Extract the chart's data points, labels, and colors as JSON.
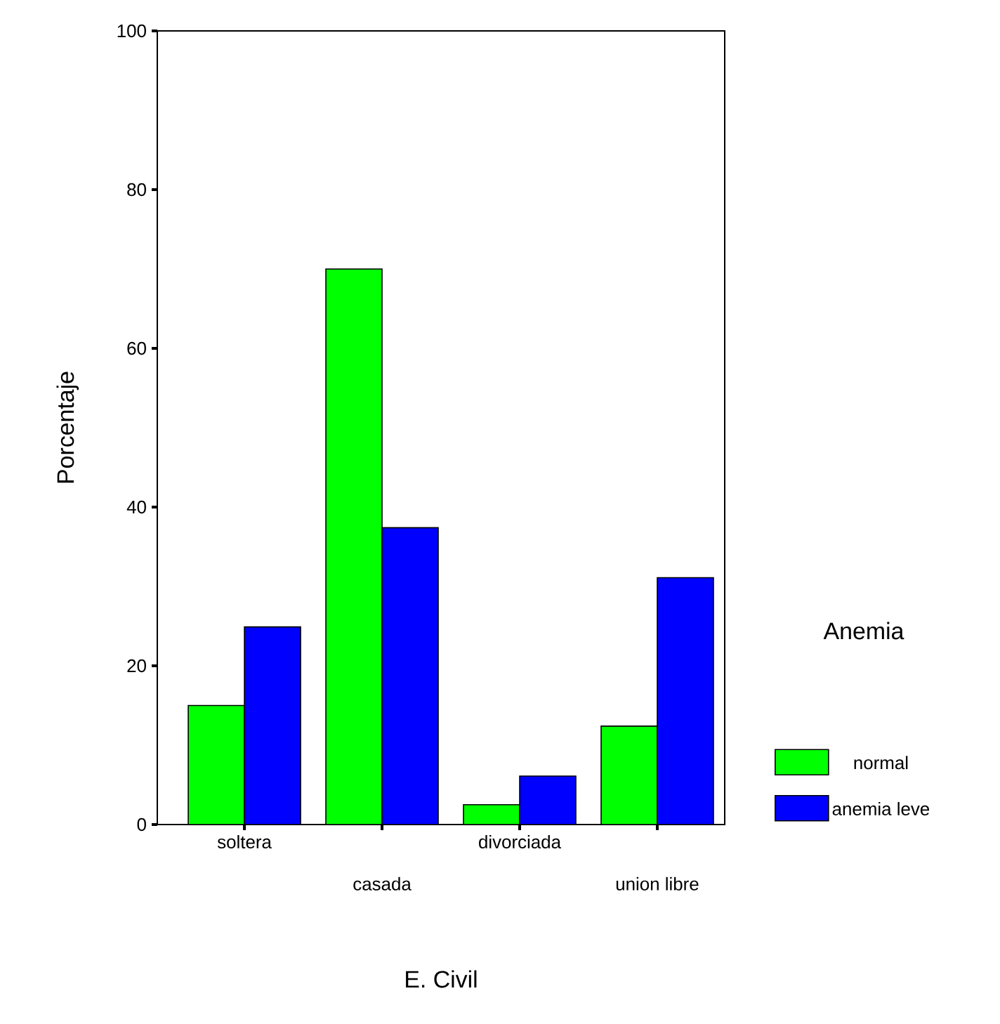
{
  "chart_data": {
    "type": "bar",
    "xlabel": "E. Civil",
    "ylabel": "Porcentaje",
    "legend_title": "Anemia",
    "categories": [
      "soltera",
      "casada",
      "divorciada",
      "union libre"
    ],
    "series": [
      {
        "name": "normal",
        "color": "#00ff00",
        "values": [
          15.0,
          70.0,
          2.5,
          12.4
        ]
      },
      {
        "name": "anemia leve",
        "color": "#0000ff",
        "values": [
          24.9,
          37.4,
          6.1,
          31.1
        ]
      }
    ],
    "ylim": [
      0,
      100
    ],
    "yticks": [
      0,
      20,
      40,
      60,
      80,
      100
    ],
    "grid": false,
    "legend": "right"
  }
}
